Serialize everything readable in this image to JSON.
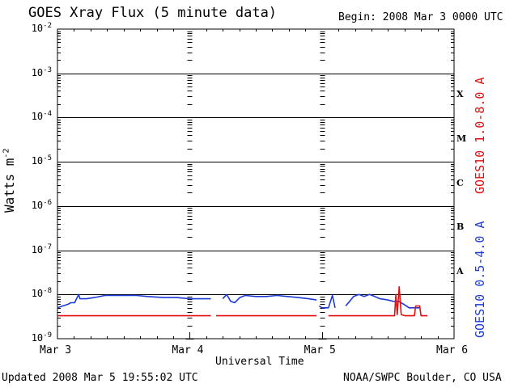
{
  "header": {
    "title": "GOES Xray Flux (5 minute data)",
    "begin": "Begin:  2008 Mar 3 0000 UTC"
  },
  "footer": {
    "updated": "Updated 2008 Mar  5 19:55:02 UTC",
    "credit": "NOAA/SWPC Boulder, CO USA"
  },
  "chart_data": {
    "type": "line",
    "title": "GOES Xray Flux (5 minute data)",
    "xlabel": "Universal Time",
    "ylabel_base": "Watts m",
    "ylabel_exp": "-2",
    "yscale": "log",
    "ylim": [
      1e-09,
      0.01
    ],
    "xlim_days": [
      0,
      3
    ],
    "x_ticks": [
      "Mar 3",
      "Mar 4",
      "Mar 5",
      "Mar 6"
    ],
    "y_ticks": [
      {
        "base": "10",
        "exp": "-2"
      },
      {
        "base": "10",
        "exp": "-3"
      },
      {
        "base": "10",
        "exp": "-4"
      },
      {
        "base": "10",
        "exp": "-5"
      },
      {
        "base": "10",
        "exp": "-6"
      },
      {
        "base": "10",
        "exp": "-7"
      },
      {
        "base": "10",
        "exp": "-8"
      },
      {
        "base": "10",
        "exp": "-9"
      }
    ],
    "flare_classes": [
      "X",
      "M",
      "C",
      "B",
      "A"
    ],
    "colors": {
      "long": "#e01010",
      "short": "#1c3ad8",
      "axis": "#000000"
    },
    "series": [
      {
        "name": "GOES10 0.5-4.0 A",
        "color": "#1c3ad8",
        "segments": [
          [
            [
              0.0,
              5e-09
            ],
            [
              0.04,
              5.5e-09
            ],
            [
              0.08,
              6e-09
            ],
            [
              0.1,
              6.5e-09
            ],
            [
              0.13,
              6.5e-09
            ],
            [
              0.16,
              1e-08
            ],
            [
              0.17,
              8e-09
            ],
            [
              0.22,
              8e-09
            ],
            [
              0.28,
              8.5e-09
            ],
            [
              0.36,
              9.5e-09
            ],
            [
              0.44,
              9.5e-09
            ],
            [
              0.52,
              9.5e-09
            ],
            [
              0.6,
              9.5e-09
            ],
            [
              0.68,
              9e-09
            ],
            [
              0.8,
              8.5e-09
            ],
            [
              0.9,
              8.5e-09
            ],
            [
              1.0,
              8e-09
            ],
            [
              1.16,
              8e-09
            ]
          ],
          [
            [
              1.25,
              8e-09
            ],
            [
              1.28,
              1e-08
            ],
            [
              1.31,
              7e-09
            ],
            [
              1.34,
              6.5e-09
            ],
            [
              1.38,
              8.5e-09
            ],
            [
              1.42,
              9.5e-09
            ],
            [
              1.5,
              9e-09
            ],
            [
              1.58,
              9e-09
            ],
            [
              1.66,
              9.5e-09
            ],
            [
              1.74,
              9e-09
            ],
            [
              1.82,
              8.5e-09
            ],
            [
              1.9,
              8e-09
            ],
            [
              1.96,
              7.5e-09
            ]
          ],
          [
            [
              1.98,
              5.5e-09
            ],
            [
              2.0,
              5e-09
            ],
            [
              2.05,
              5e-09
            ],
            [
              2.08,
              9.5e-09
            ],
            [
              2.1,
              5e-09
            ]
          ],
          [
            [
              2.18,
              5.5e-09
            ],
            [
              2.21,
              7e-09
            ],
            [
              2.24,
              9e-09
            ],
            [
              2.28,
              1e-08
            ],
            [
              2.32,
              9e-09
            ],
            [
              2.36,
              1e-08
            ],
            [
              2.4,
              9e-09
            ],
            [
              2.44,
              8e-09
            ],
            [
              2.5,
              7.5e-09
            ],
            [
              2.54,
              7e-09
            ],
            [
              2.58,
              7e-09
            ],
            [
              2.62,
              6e-09
            ],
            [
              2.66,
              5e-09
            ],
            [
              2.74,
              5e-09
            ]
          ]
        ]
      },
      {
        "name": "GOES10 1.0-8.0 A",
        "color": "#e01010",
        "segments": [
          [
            [
              0.0,
              3.3e-09
            ],
            [
              1.16,
              3.3e-09
            ]
          ],
          [
            [
              1.2,
              3.3e-09
            ],
            [
              1.96,
              3.3e-09
            ]
          ],
          [
            [
              2.05,
              3.3e-09
            ],
            [
              2.55,
              3.3e-09
            ],
            [
              2.56,
              1e-08
            ],
            [
              2.57,
              3.5e-09
            ],
            [
              2.585,
              1.5e-08
            ],
            [
              2.6,
              3.5e-09
            ],
            [
              2.63,
              3.3e-09
            ],
            [
              2.7,
              3.3e-09
            ],
            [
              2.71,
              5.5e-09
            ],
            [
              2.74,
              5.5e-09
            ],
            [
              2.75,
              3.3e-09
            ],
            [
              2.8,
              3.3e-09
            ]
          ]
        ]
      }
    ]
  }
}
